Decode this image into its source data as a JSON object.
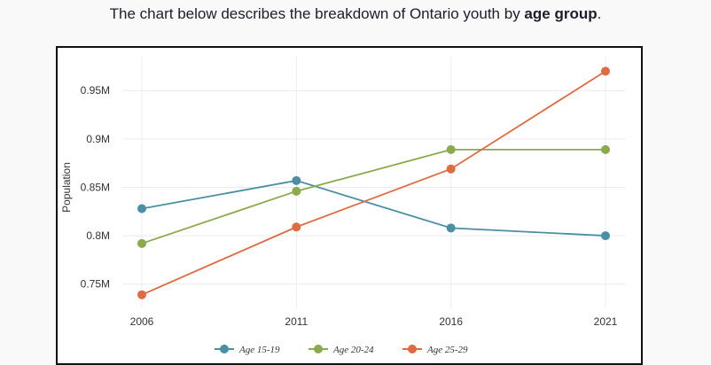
{
  "header": {
    "intro_prefix": "The chart below describes the breakdown of Ontario youth by ",
    "intro_bold": "age group",
    "intro_suffix": "."
  },
  "chart_data": {
    "type": "line",
    "title": "",
    "xlabel": "",
    "ylabel": "Population",
    "x": [
      "2006",
      "2011",
      "2016",
      "2021"
    ],
    "ylim": [
      0.725,
      0.985
    ],
    "yticks": [
      {
        "value": 0.75,
        "label": "0.75M"
      },
      {
        "value": 0.8,
        "label": "0.8M"
      },
      {
        "value": 0.85,
        "label": "0.85M"
      },
      {
        "value": 0.9,
        "label": "0.9M"
      },
      {
        "value": 0.95,
        "label": "0.95M"
      }
    ],
    "grid": true,
    "legend_position": "bottom",
    "series": [
      {
        "name": "Age 15-19",
        "color": "#4a8fa3",
        "values": [
          0.828,
          0.857,
          0.808,
          0.8
        ]
      },
      {
        "name": "Age 20-24",
        "color": "#8aaa4c",
        "values": [
          0.792,
          0.846,
          0.889,
          0.889
        ]
      },
      {
        "name": "Age 25-29",
        "color": "#e06a42",
        "values": [
          0.739,
          0.809,
          0.869,
          0.97
        ]
      }
    ]
  }
}
